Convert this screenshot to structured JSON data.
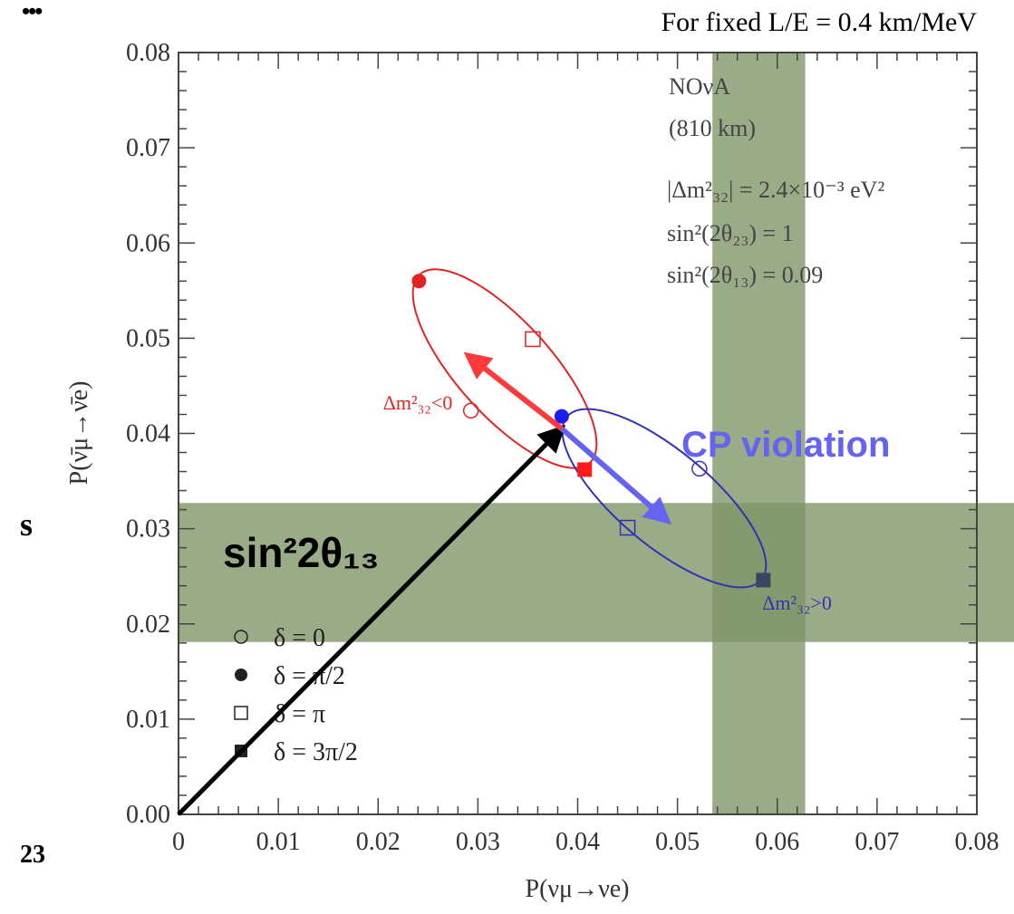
{
  "header_note": "For fixed L/E = 0.4 km/MeV",
  "edge_fragments": {
    "dots": "•••",
    "s": "s",
    "num": "23"
  },
  "colors": {
    "band": "#7e9365",
    "normal": "#3232b4",
    "inverted": "#e02424",
    "cp_arrow": "#6464f0",
    "cp_text": "#6464f0",
    "theta_arrow": "#000000"
  },
  "chart_data": {
    "type": "scatter",
    "xlabel": "P(νμ→νe)",
    "ylabel": "P(ν̄μ→ν̄e)",
    "xlim": [
      0,
      0.08
    ],
    "ylim": [
      0,
      0.08
    ],
    "xticks": [
      "0",
      "0.01",
      "0.02",
      "0.03",
      "0.04",
      "0.05",
      "0.06",
      "0.07",
      "0.08"
    ],
    "yticks": [
      "0.00",
      "0.01",
      "0.02",
      "0.03",
      "0.04",
      "0.05",
      "0.06",
      "0.07",
      "0.08"
    ],
    "grid": false,
    "info": {
      "experiment": "NOνA",
      "baseline": "(810 km)",
      "params": [
        "|Δm²₃₂| = 2.4×10⁻³ eV²",
        "sin²(2θ₂₃) = 1",
        "sin²(2θ₁₃) = 0.09"
      ]
    },
    "bands": [
      {
        "axis": "x",
        "range": [
          0.0535,
          0.0628
        ]
      },
      {
        "axis": "y",
        "range": [
          0.0181,
          0.0327
        ]
      }
    ],
    "series": [
      {
        "name": "Δm²₃₂>0",
        "label_at": [
          0.0585,
          0.0215
        ],
        "color_key": "normal",
        "points": [
          {
            "delta": "0",
            "x": 0.0522,
            "y": 0.0363
          },
          {
            "delta": "π/2",
            "x": 0.0384,
            "y": 0.0418
          },
          {
            "delta": "π",
            "x": 0.045,
            "y": 0.0301
          },
          {
            "delta": "3π/2",
            "x": 0.0586,
            "y": 0.0246
          }
        ]
      },
      {
        "name": "Δm²₃₂<0",
        "label_at": [
          0.0205,
          0.0425
        ],
        "color_key": "inverted",
        "points": [
          {
            "delta": "0",
            "x": 0.0293,
            "y": 0.0424
          },
          {
            "delta": "π/2",
            "x": 0.0241,
            "y": 0.056
          },
          {
            "delta": "π",
            "x": 0.0355,
            "y": 0.0499
          },
          {
            "delta": "3π/2",
            "x": 0.0407,
            "y": 0.0362
          }
        ]
      }
    ],
    "legend": {
      "placement": "bottom-left",
      "entries": [
        {
          "marker": "open-circle",
          "label": "δ = 0"
        },
        {
          "marker": "filled-circle",
          "label": "δ = π/2"
        },
        {
          "marker": "open-square",
          "label": "δ = π"
        },
        {
          "marker": "filled-square",
          "label": "δ = 3π/2"
        }
      ]
    },
    "annotations": {
      "cp_label": "CP violation",
      "theta_label": "sin²2θ₁₃",
      "arrows": [
        {
          "name": "theta13-arrow",
          "from": [
            0.0,
            0.0
          ],
          "to": [
            0.0384,
            0.0405
          ],
          "color_key": "theta_arrow"
        },
        {
          "name": "cp-arrow-inverted",
          "from": [
            0.0384,
            0.0405
          ],
          "to": [
            0.029,
            0.0482
          ],
          "color_key": "inverted"
        },
        {
          "name": "cp-arrow-normal",
          "from": [
            0.0384,
            0.0405
          ],
          "to": [
            0.049,
            0.0308
          ],
          "color_key": "cp_arrow"
        }
      ]
    }
  }
}
